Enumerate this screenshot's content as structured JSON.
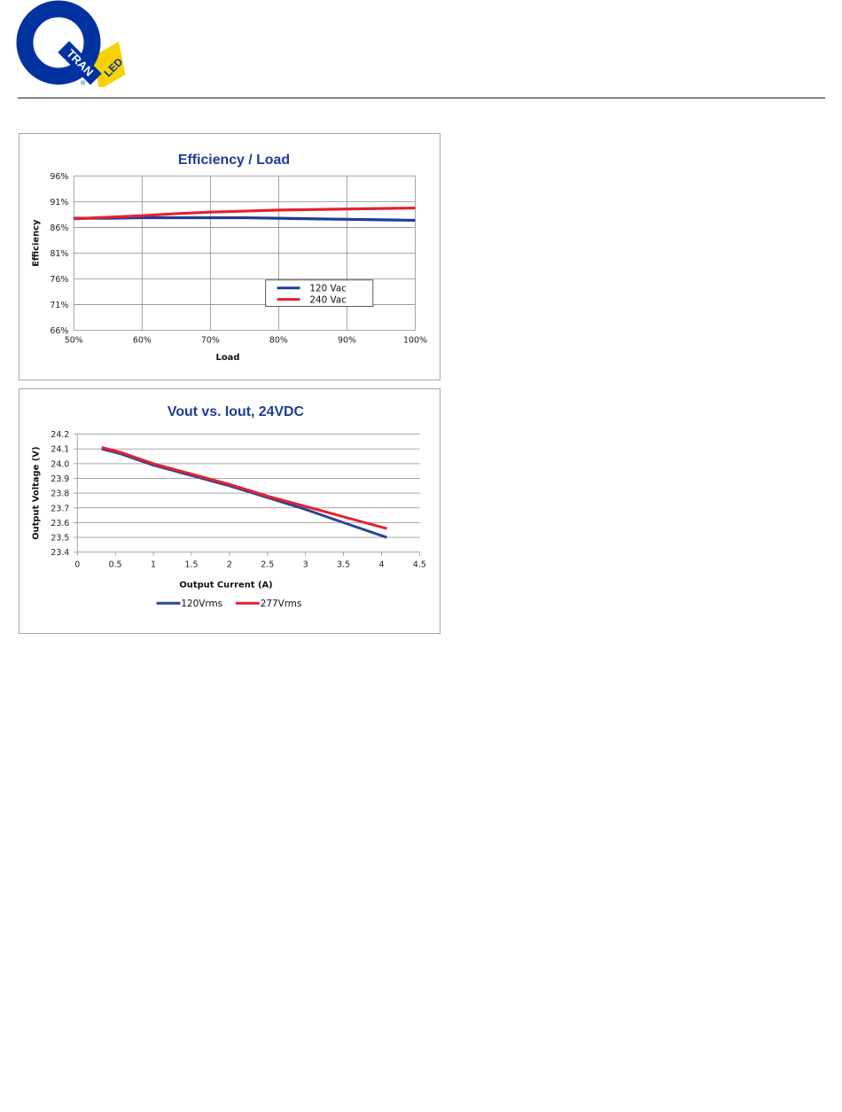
{
  "logo": {
    "letters": "Q",
    "word1": "TRAN",
    "word2": "LED",
    "mark": "®",
    "colors": {
      "blue": "#0033a0",
      "yellow": "#f5d200"
    }
  },
  "chart_data": [
    {
      "type": "line",
      "title": "Efficiency / Load",
      "xlabel": "Load",
      "ylabel": "Efficiency",
      "x_ticks": [
        "50%",
        "60%",
        "70%",
        "80%",
        "90%",
        "100%"
      ],
      "y_ticks": [
        "96%",
        "91%",
        "86%",
        "81%",
        "76%",
        "71%",
        "66%"
      ],
      "xlim": [
        50,
        100
      ],
      "ylim": [
        66,
        96
      ],
      "grid": "both",
      "legend_position": "lower-right",
      "series": [
        {
          "name": "120 Vac",
          "color": "#1f3c99",
          "x": [
            50,
            55,
            60,
            65,
            70,
            75,
            80,
            85,
            90,
            95,
            100
          ],
          "y": [
            87.8,
            87.8,
            87.9,
            87.9,
            87.9,
            87.9,
            87.8,
            87.7,
            87.6,
            87.5,
            87.4
          ]
        },
        {
          "name": "240 Vac",
          "color": "#e32130",
          "x": [
            50,
            55,
            60,
            65,
            70,
            75,
            80,
            85,
            90,
            95,
            100
          ],
          "y": [
            87.7,
            88.0,
            88.3,
            88.7,
            89.0,
            89.2,
            89.4,
            89.5,
            89.6,
            89.7,
            89.8
          ]
        }
      ]
    },
    {
      "type": "line",
      "title": "Vout vs. Iout, 24VDC",
      "xlabel": "Output Current (A)",
      "ylabel": "Output Voltage (V)",
      "x_ticks": [
        "0",
        "0.5",
        "1",
        "1.5",
        "2",
        "2.5",
        "3",
        "3.5",
        "4",
        "4.5"
      ],
      "y_ticks": [
        "24.2",
        "24.1",
        "24.0",
        "23.9",
        "23.8",
        "23.7",
        "23.6",
        "23.5",
        "23.4"
      ],
      "xlim": [
        0,
        4.5
      ],
      "ylim": [
        23.4,
        24.2
      ],
      "grid": "horizontal",
      "legend_position": "bottom",
      "series": [
        {
          "name": "120Vrms",
          "color": "#2e4594",
          "x": [
            0.32,
            0.55,
            1.0,
            1.5,
            2.0,
            2.5,
            3.0,
            3.5,
            4.07
          ],
          "y": [
            24.1,
            24.07,
            23.99,
            23.92,
            23.85,
            23.77,
            23.69,
            23.6,
            23.5
          ]
        },
        {
          "name": "277Vrms",
          "color": "#e32130",
          "x": [
            0.32,
            0.55,
            1.0,
            1.5,
            2.0,
            2.5,
            3.0,
            3.5,
            4.07
          ],
          "y": [
            24.11,
            24.08,
            24.0,
            23.93,
            23.86,
            23.78,
            23.71,
            23.64,
            23.56
          ]
        }
      ]
    }
  ]
}
